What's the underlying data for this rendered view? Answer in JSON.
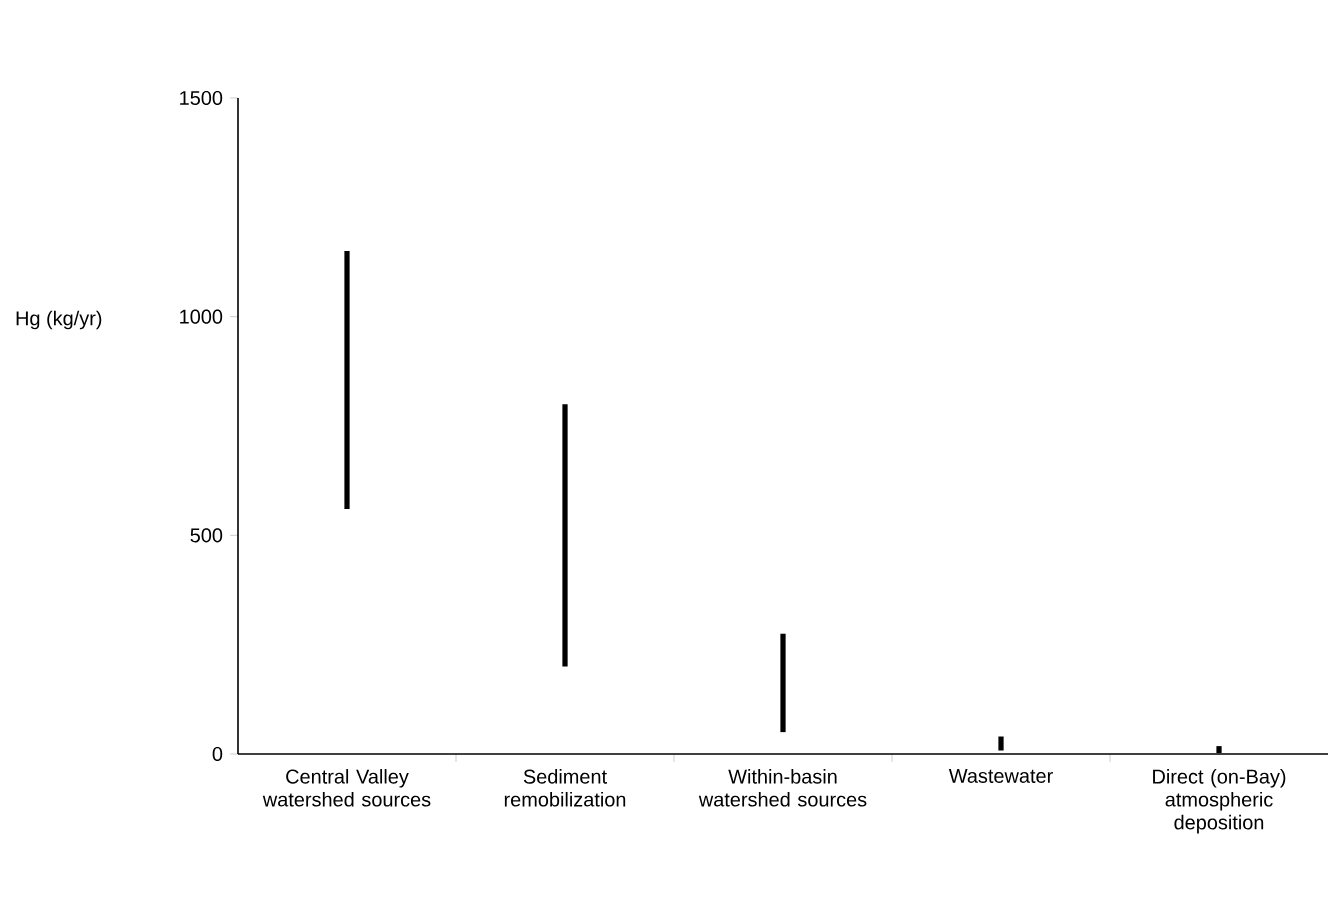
{
  "chart_data": {
    "type": "bar",
    "ylabel": "Hg (kg/yr)",
    "categories": [
      "Central Valley watershed sources",
      "Sediment remobilization",
      "Within-basin watershed sources",
      "Wastewater",
      "Direct (on-Bay) atmospheric deposition"
    ],
    "base": [
      560,
      200,
      50,
      8,
      2
    ],
    "values": [
      590,
      600,
      225,
      32,
      16
    ],
    "color": "#000000",
    "ylim": [
      0,
      1500
    ],
    "yticks": [
      0,
      500,
      1000,
      1500
    ]
  }
}
